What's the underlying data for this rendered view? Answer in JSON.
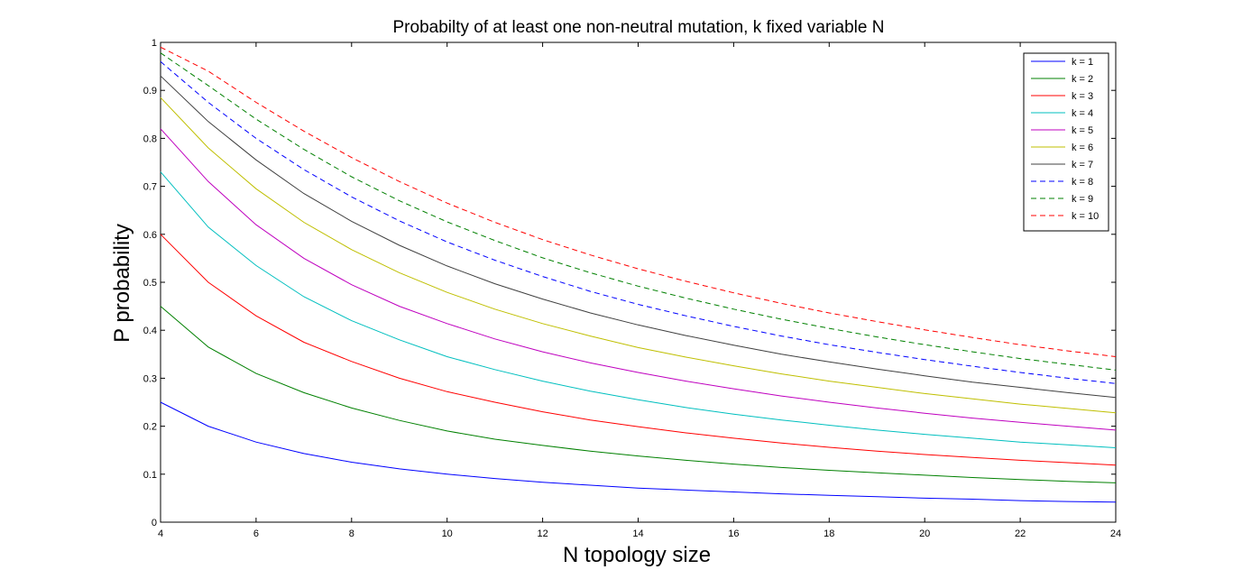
{
  "chart_data": {
    "type": "line",
    "title": "Probabilty of at least one non-neutral mutation, k fixed variable N",
    "xlabel": "N topology size",
    "ylabel": "P probability",
    "xlim": [
      4,
      24
    ],
    "ylim": [
      0,
      1
    ],
    "xticks": [
      4,
      6,
      8,
      10,
      12,
      14,
      16,
      18,
      20,
      22,
      24
    ],
    "yticks": [
      0,
      0.1,
      0.2,
      0.3,
      0.4,
      0.5,
      0.6,
      0.7,
      0.8,
      0.9,
      1
    ],
    "ytick_labels": [
      "0",
      "0.1",
      "0.2",
      "0.3",
      "0.4",
      "0.5",
      "0.6",
      "0.7",
      "0.8",
      "0.9",
      "1"
    ],
    "grid": false,
    "legend_position": "top-right",
    "x": [
      4,
      5,
      6,
      7,
      8,
      9,
      10,
      11,
      12,
      13,
      14,
      15,
      16,
      17,
      18,
      19,
      20,
      21,
      22,
      23,
      24
    ],
    "series": [
      {
        "name": "k = 1",
        "color": "#0000ff",
        "dash": "solid",
        "values": [
          0.25,
          0.2,
          0.167,
          0.143,
          0.125,
          0.111,
          0.1,
          0.091,
          0.083,
          0.077,
          0.071,
          0.067,
          0.063,
          0.059,
          0.056,
          0.053,
          0.05,
          0.048,
          0.045,
          0.043,
          0.042
        ]
      },
      {
        "name": "k = 2",
        "color": "#008000",
        "dash": "solid",
        "values": [
          0.45,
          0.365,
          0.31,
          0.27,
          0.238,
          0.212,
          0.19,
          0.173,
          0.16,
          0.148,
          0.138,
          0.129,
          0.121,
          0.114,
          0.108,
          0.103,
          0.098,
          0.093,
          0.089,
          0.085,
          0.082
        ]
      },
      {
        "name": "k = 3",
        "color": "#ff0000",
        "dash": "solid",
        "values": [
          0.6,
          0.5,
          0.43,
          0.375,
          0.335,
          0.3,
          0.272,
          0.25,
          0.23,
          0.213,
          0.199,
          0.186,
          0.175,
          0.165,
          0.156,
          0.148,
          0.141,
          0.135,
          0.129,
          0.124,
          0.119
        ]
      },
      {
        "name": "k = 4",
        "color": "#00bfbf",
        "dash": "solid",
        "values": [
          0.73,
          0.615,
          0.535,
          0.47,
          0.42,
          0.38,
          0.345,
          0.318,
          0.294,
          0.273,
          0.255,
          0.239,
          0.225,
          0.213,
          0.202,
          0.192,
          0.183,
          0.175,
          0.167,
          0.161,
          0.155
        ]
      },
      {
        "name": "k = 5",
        "color": "#bf00bf",
        "dash": "solid",
        "values": [
          0.82,
          0.71,
          0.62,
          0.55,
          0.495,
          0.45,
          0.414,
          0.382,
          0.355,
          0.332,
          0.312,
          0.294,
          0.278,
          0.263,
          0.25,
          0.238,
          0.227,
          0.217,
          0.208,
          0.2,
          0.192
        ]
      },
      {
        "name": "k = 6",
        "color": "#bfbf00",
        "dash": "solid",
        "values": [
          0.885,
          0.78,
          0.695,
          0.625,
          0.568,
          0.52,
          0.479,
          0.444,
          0.414,
          0.388,
          0.364,
          0.344,
          0.326,
          0.309,
          0.294,
          0.281,
          0.268,
          0.257,
          0.246,
          0.237,
          0.228
        ]
      },
      {
        "name": "k = 7",
        "color": "#404040",
        "dash": "solid",
        "values": [
          0.93,
          0.835,
          0.755,
          0.685,
          0.627,
          0.577,
          0.534,
          0.497,
          0.465,
          0.436,
          0.411,
          0.389,
          0.369,
          0.35,
          0.334,
          0.319,
          0.305,
          0.292,
          0.281,
          0.27,
          0.26
        ]
      },
      {
        "name": "k = 8",
        "color": "#0000ff",
        "dash": "dashed",
        "values": [
          0.96,
          0.875,
          0.8,
          0.735,
          0.678,
          0.628,
          0.584,
          0.546,
          0.512,
          0.481,
          0.454,
          0.43,
          0.408,
          0.388,
          0.37,
          0.354,
          0.339,
          0.325,
          0.312,
          0.3,
          0.289
        ]
      },
      {
        "name": "k = 9",
        "color": "#008000",
        "dash": "dashed",
        "values": [
          0.978,
          0.91,
          0.84,
          0.777,
          0.72,
          0.67,
          0.626,
          0.587,
          0.551,
          0.52,
          0.492,
          0.467,
          0.444,
          0.423,
          0.404,
          0.386,
          0.37,
          0.355,
          0.341,
          0.329,
          0.317
        ]
      },
      {
        "name": "k = 10",
        "color": "#ff0000",
        "dash": "dashed",
        "values": [
          0.99,
          0.94,
          0.875,
          0.815,
          0.76,
          0.71,
          0.665,
          0.625,
          0.589,
          0.557,
          0.528,
          0.502,
          0.478,
          0.456,
          0.436,
          0.418,
          0.401,
          0.385,
          0.37,
          0.357,
          0.345
        ]
      }
    ]
  }
}
